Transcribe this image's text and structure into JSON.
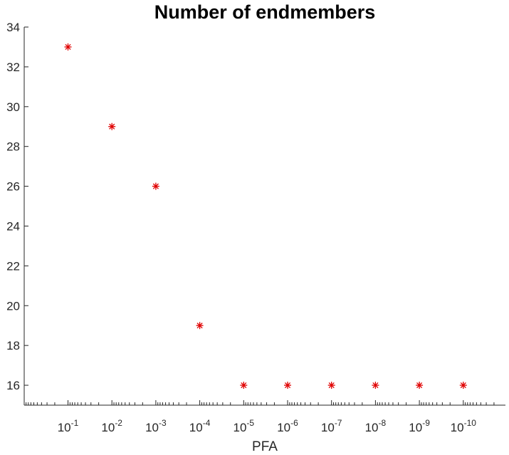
{
  "chart_data": {
    "type": "scatter",
    "title": "Number of endmembers",
    "xlabel": "PFA",
    "ylabel": "",
    "x_scale": "log (reversed)",
    "x": [
      "1e-1",
      "1e-2",
      "1e-3",
      "1e-4",
      "1e-5",
      "1e-6",
      "1e-7",
      "1e-8",
      "1e-9",
      "1e-10"
    ],
    "x_exponents": [
      -1,
      -2,
      -3,
      -4,
      -5,
      -6,
      -7,
      -8,
      -9,
      -10
    ],
    "y": [
      33,
      29,
      26,
      19,
      16,
      16,
      16,
      16,
      16,
      16
    ],
    "ylim": [
      15,
      34
    ],
    "yticks": [
      16,
      18,
      20,
      22,
      24,
      26,
      28,
      30,
      32,
      34
    ],
    "xtick_labels": [
      {
        "base": "10",
        "exp": "-1"
      },
      {
        "base": "10",
        "exp": "-2"
      },
      {
        "base": "10",
        "exp": "-3"
      },
      {
        "base": "10",
        "exp": "-4"
      },
      {
        "base": "10",
        "exp": "-5"
      },
      {
        "base": "10",
        "exp": "-6"
      },
      {
        "base": "10",
        "exp": "-7"
      },
      {
        "base": "10",
        "exp": "-8"
      },
      {
        "base": "10",
        "exp": "-9"
      },
      {
        "base": "10",
        "exp": "-10"
      }
    ],
    "marker": "asterisk",
    "marker_color": "#e00000",
    "grid": false,
    "axes_color": "#262626"
  }
}
